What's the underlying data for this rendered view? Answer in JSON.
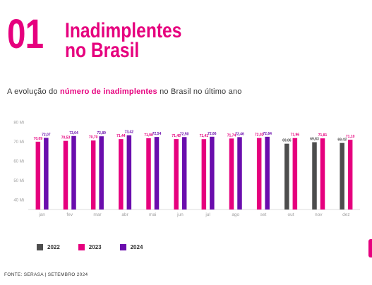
{
  "header": {
    "section_number": "01",
    "title_line1": "Inadimplentes",
    "title_line2": "no Brasil"
  },
  "subtitle": {
    "prefix": "A evolução do ",
    "highlight": "número de inadimplentes",
    "suffix": " no Brasil no último ano"
  },
  "source": "FONTE: SERASA | SETEMBRO 2024",
  "colors": {
    "accent": "#e6007e",
    "series_2022": "#4d4d4d",
    "series_2023": "#e6007e",
    "series_2024": "#6a0dad",
    "axis_text": "#9e9e9e"
  },
  "chart_data": {
    "type": "bar",
    "categories": [
      "jan",
      "fev",
      "mar",
      "abr",
      "mai",
      "jun",
      "jul",
      "ago",
      "set",
      "out",
      "nov",
      "dez"
    ],
    "y_ticks": [
      "40 Mi",
      "50 Mi",
      "60 Mi",
      "70 Mi",
      "80 Mi"
    ],
    "ylim": [
      35,
      83
    ],
    "grid": false,
    "legend_position": "bottom-left",
    "series": [
      {
        "name": "2022",
        "color": "#4d4d4d",
        "values": [
          null,
          null,
          null,
          null,
          null,
          null,
          null,
          null,
          null,
          69.06,
          69.83,
          69.43
        ],
        "labels": [
          "",
          "",
          "",
          "",
          "",
          "",
          "",
          "",
          "",
          "69,06",
          "69,83",
          "69,43"
        ]
      },
      {
        "name": "2023",
        "color": "#e6007e",
        "values": [
          70.09,
          70.53,
          70.7,
          71.44,
          71.9,
          71.45,
          71.41,
          71.74,
          72.02,
          71.96,
          71.81,
          71.1
        ],
        "labels": [
          "70,09",
          "70,53",
          "70,70",
          "71,44",
          "71,90",
          "71,45",
          "71,41",
          "71,74",
          "72,02",
          "71,96",
          "71,81",
          "71,10"
        ]
      },
      {
        "name": "2024",
        "color": "#6a0dad",
        "values": [
          72.07,
          73.04,
          72.89,
          73.42,
          72.54,
          72.5,
          72.66,
          72.46,
          72.64,
          null,
          null,
          null
        ],
        "labels": [
          "72,07",
          "73,04",
          "72,89",
          "73,42",
          "72,54",
          "72,50",
          "72,66",
          "72,46",
          "72,64",
          "",
          "",
          ""
        ]
      }
    ]
  }
}
